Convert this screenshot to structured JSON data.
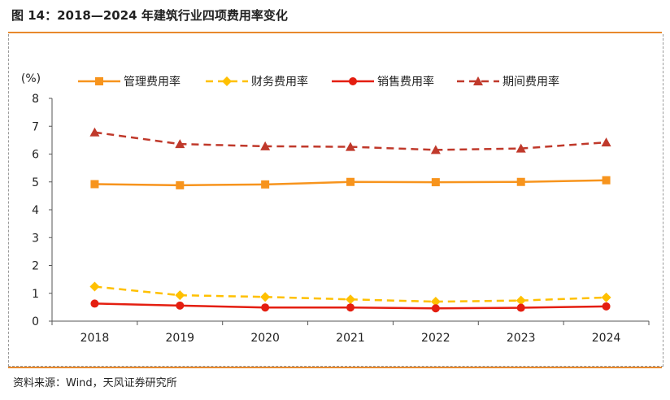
{
  "header": {
    "title": "图 14：2018—2024 年建筑行业四项费用率变化"
  },
  "footer": {
    "source": "资料来源：Wind，天风证券研究所"
  },
  "colors": {
    "accent_rule": "#e8892c",
    "management": "#f7941d",
    "finance": "#ffc000",
    "sales": "#e41e10",
    "period": "#c0392b"
  },
  "chart_data": {
    "type": "line",
    "title": "",
    "ylabel": "(%)",
    "xlabel": "",
    "ylim": [
      0,
      8
    ],
    "yticks": [
      0,
      1,
      2,
      3,
      4,
      5,
      6,
      7,
      8
    ],
    "categories": [
      "2018",
      "2019",
      "2020",
      "2021",
      "2022",
      "2023",
      "2024"
    ],
    "legend_position": "top",
    "grid": false,
    "series": [
      {
        "name": "管理费用率",
        "marker": "square",
        "dash": false,
        "color": "#f7941d",
        "values": [
          4.92,
          4.88,
          4.91,
          5.0,
          4.99,
          5.0,
          5.06
        ]
      },
      {
        "name": "财务费用率",
        "marker": "diamond",
        "dash": true,
        "color": "#ffc000",
        "values": [
          1.24,
          0.93,
          0.87,
          0.78,
          0.7,
          0.74,
          0.85
        ]
      },
      {
        "name": "销售费用率",
        "marker": "circle",
        "dash": false,
        "color": "#e41e10",
        "values": [
          0.63,
          0.56,
          0.49,
          0.49,
          0.46,
          0.48,
          0.53
        ]
      },
      {
        "name": "期间费用率",
        "marker": "triangle",
        "dash": true,
        "color": "#c0392b",
        "values": [
          6.78,
          6.36,
          6.28,
          6.26,
          6.15,
          6.2,
          6.42
        ]
      }
    ]
  }
}
